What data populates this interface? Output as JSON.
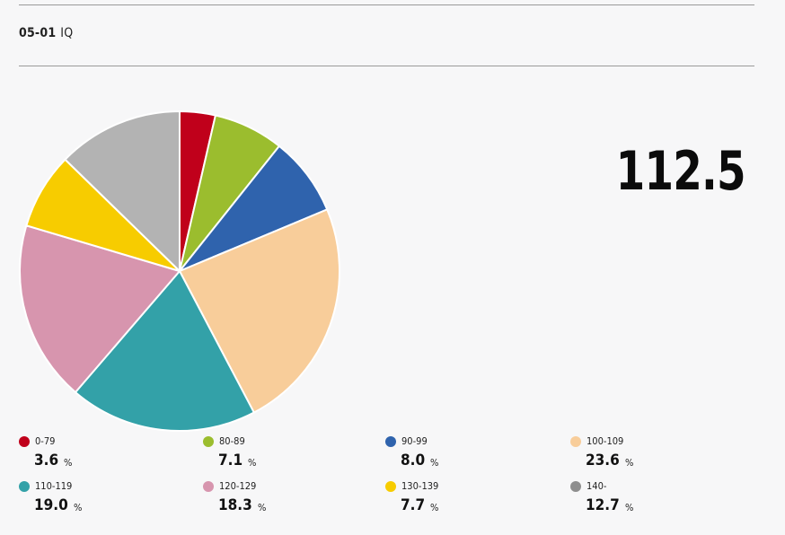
{
  "header": {
    "code": "05-01",
    "name": "IQ"
  },
  "summary": {
    "value": "112.5"
  },
  "chart_data": {
    "type": "pie",
    "title": "",
    "categories": [
      "0-79",
      "80-89",
      "90-99",
      "100-109",
      "110-119",
      "120-129",
      "130-139",
      "140-"
    ],
    "values": [
      3.6,
      7.1,
      8.0,
      23.6,
      19.0,
      18.3,
      7.7,
      12.7
    ],
    "value_labels": [
      "3.6",
      "7.1",
      "8.0",
      "23.6",
      "19.0",
      "18.3",
      "7.7",
      "12.7"
    ],
    "unit": "%",
    "colors": [
      "#c0001b",
      "#9bbd2e",
      "#2f63ad",
      "#f8cd9a",
      "#33a1a8",
      "#d795ae",
      "#f7cc00",
      "#b3b3b3"
    ],
    "legend_colors": [
      "#c0001b",
      "#9bbd2e",
      "#2f63ad",
      "#f8cd9a",
      "#33a1a8",
      "#d795ae",
      "#f7cc00",
      "#8e8e8e"
    ],
    "legend_placement": "bottom",
    "start_angle_deg": 0,
    "direction": "clockwise"
  }
}
